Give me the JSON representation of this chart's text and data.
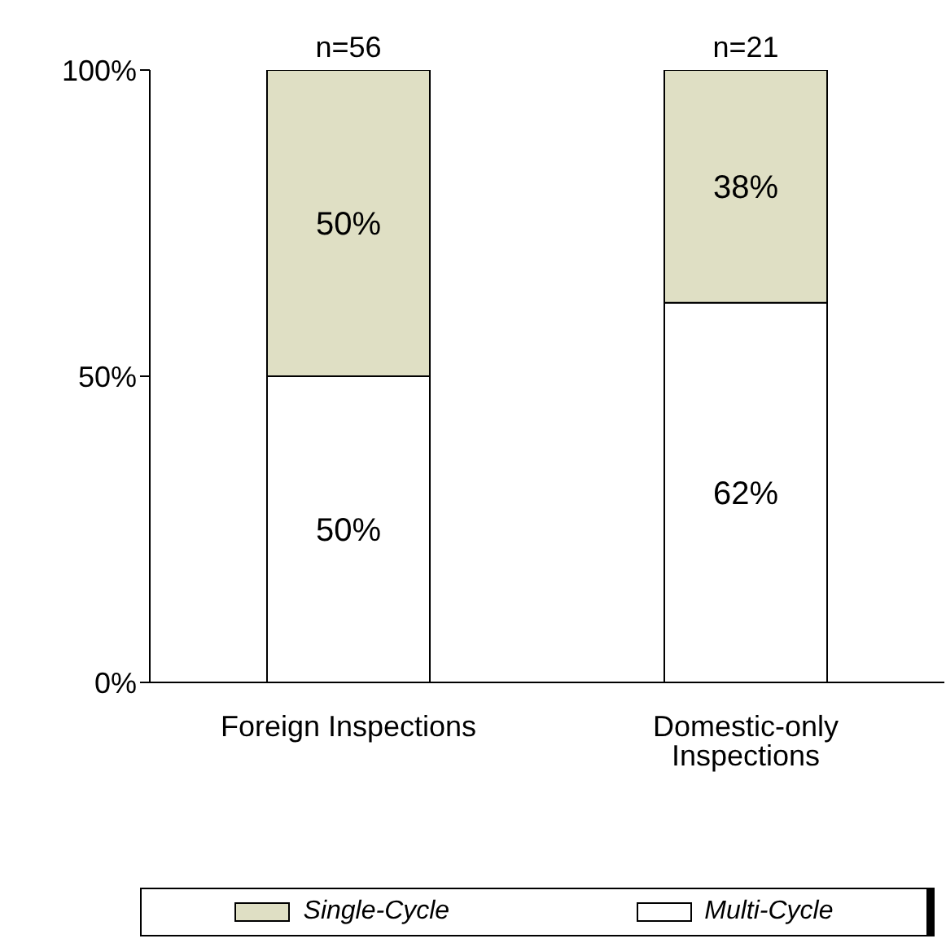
{
  "chart_data": {
    "type": "bar",
    "stacked": true,
    "categories": [
      "Foreign Inspections",
      "Domestic-only Inspections"
    ],
    "series": [
      {
        "name": "Multi-Cycle",
        "color": "#ffffff",
        "values": [
          50,
          62
        ],
        "value_labels": [
          "50%",
          "62%"
        ]
      },
      {
        "name": "Single-Cycle",
        "color": "#dfdfc4",
        "values": [
          50,
          38
        ],
        "value_labels": [
          "50%",
          "38%"
        ]
      }
    ],
    "annotations": [
      {
        "text": "n=56",
        "x": "Foreign Inspections",
        "y": 100
      },
      {
        "text": "n=21",
        "x": "Domestic-only Inspections",
        "y": 100
      }
    ],
    "ylim": [
      0,
      100
    ],
    "yticks": [
      {
        "value": 0,
        "label": "0%"
      },
      {
        "value": 50,
        "label": "50%"
      },
      {
        "value": 100,
        "label": "100%"
      }
    ],
    "legend": "bottom"
  }
}
